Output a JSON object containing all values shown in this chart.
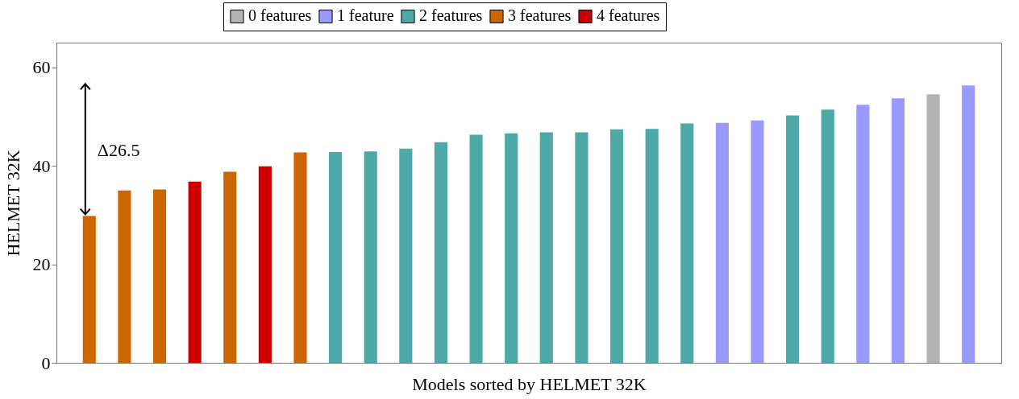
{
  "chart_data": {
    "type": "bar",
    "xlabel": "Models sorted by HELMET 32K",
    "ylabel": "HELMET 32K",
    "categories": [
      null,
      null,
      null,
      null,
      null,
      null,
      null,
      null,
      null,
      null,
      null,
      null,
      null,
      null,
      null,
      null,
      null,
      null,
      null,
      null,
      null,
      null,
      null,
      null,
      null,
      null
    ],
    "series": [
      {
        "name": "0 features",
        "color": "#b3b3b3",
        "values": [
          null,
          null,
          null,
          null,
          null,
          null,
          null,
          null,
          null,
          null,
          null,
          null,
          null,
          null,
          null,
          null,
          null,
          null,
          null,
          null,
          null,
          null,
          null,
          null,
          54.5,
          null
        ]
      },
      {
        "name": "1 feature",
        "color": "#9999ff",
        "values": [
          null,
          null,
          null,
          null,
          null,
          null,
          null,
          null,
          null,
          null,
          null,
          null,
          null,
          null,
          null,
          null,
          null,
          null,
          48.7,
          49.2,
          null,
          null,
          52.4,
          53.7,
          null,
          56.3
        ]
      },
      {
        "name": "2 features",
        "color": "#4da8a8",
        "values": [
          null,
          null,
          null,
          null,
          null,
          null,
          null,
          42.8,
          42.9,
          43.5,
          44.8,
          46.3,
          46.6,
          46.8,
          46.8,
          47.4,
          47.5,
          48.6,
          null,
          null,
          50.2,
          51.4,
          null,
          null,
          null,
          null
        ]
      },
      {
        "name": "3 features",
        "color": "#cc6600",
        "values": [
          29.8,
          35.0,
          35.2,
          null,
          38.8,
          null,
          42.7,
          null,
          null,
          null,
          null,
          null,
          null,
          null,
          null,
          null,
          null,
          null,
          null,
          null,
          null,
          null,
          null,
          null,
          null,
          null
        ]
      },
      {
        "name": "4 features",
        "color": "#cc0000",
        "values": [
          null,
          null,
          null,
          36.8,
          null,
          39.9,
          null,
          null,
          null,
          null,
          null,
          null,
          null,
          null,
          null,
          null,
          null,
          null,
          null,
          null,
          null,
          null,
          null,
          null,
          null,
          null
        ]
      }
    ],
    "ylim": [
      0,
      65
    ],
    "yticks": [
      0,
      20,
      40,
      60
    ],
    "grid": false,
    "legend": "top",
    "annotations": [
      "Δ26.5"
    ]
  }
}
